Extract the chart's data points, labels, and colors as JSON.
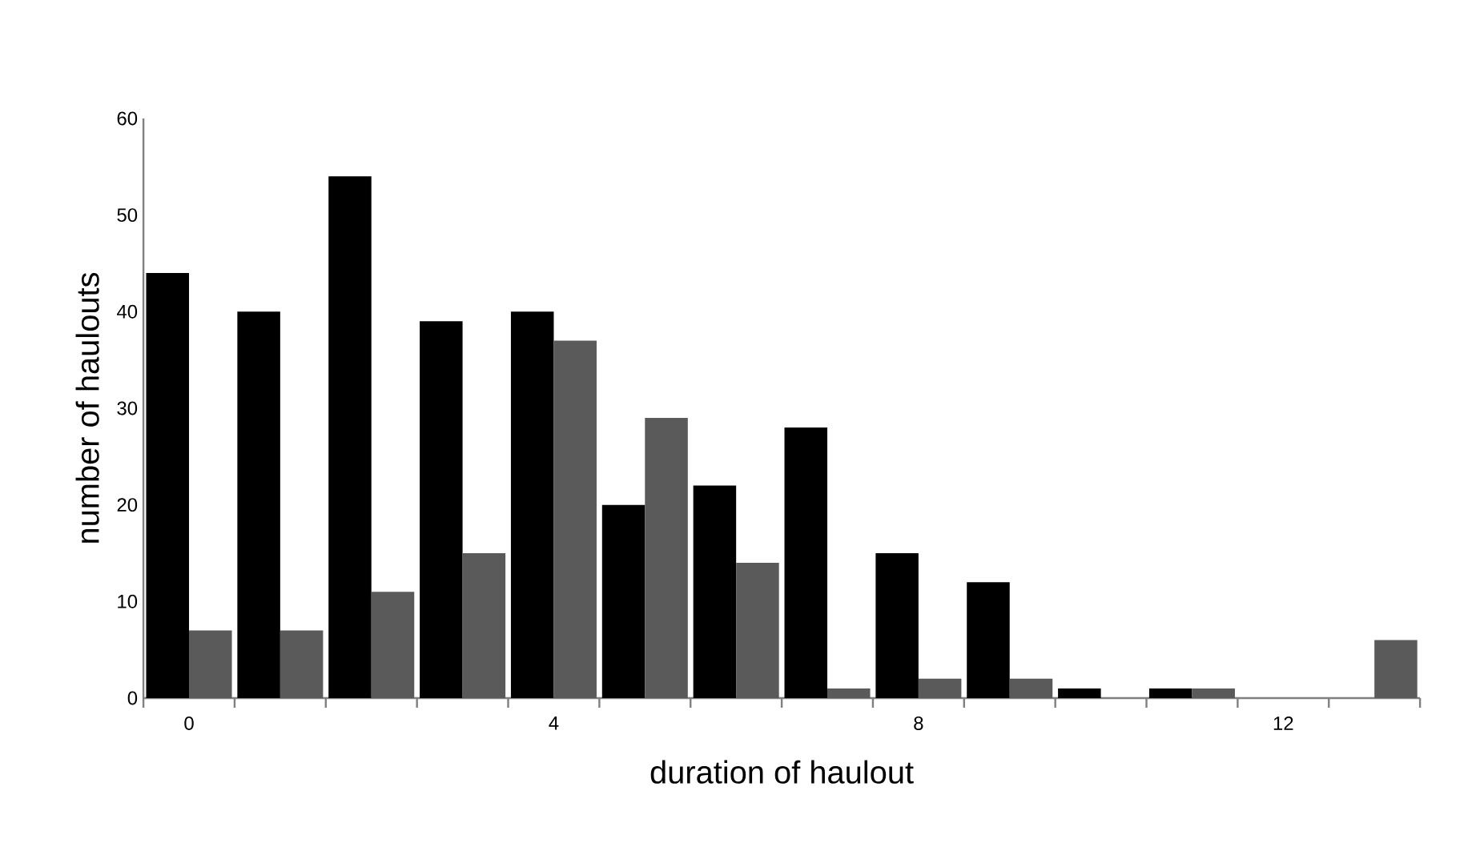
{
  "chart_data": {
    "type": "bar",
    "xlabel": "duration of haulout",
    "ylabel": "number of haulouts",
    "categories": [
      "0",
      null,
      null,
      null,
      "4",
      null,
      null,
      null,
      "8",
      null,
      null,
      null,
      "12",
      null
    ],
    "series": [
      {
        "color": "#000000",
        "values": [
          44,
          40,
          54,
          39,
          40,
          20,
          22,
          28,
          15,
          12,
          1,
          1,
          0,
          0
        ]
      },
      {
        "color": "#5a5a5a",
        "values": [
          7,
          7,
          11,
          15,
          37,
          29,
          14,
          1,
          2,
          2,
          0,
          1,
          0,
          6
        ]
      }
    ],
    "ylim": [
      0,
      60
    ],
    "yticks": [
      0,
      10,
      20,
      30,
      40,
      50,
      60
    ],
    "grid": false
  }
}
